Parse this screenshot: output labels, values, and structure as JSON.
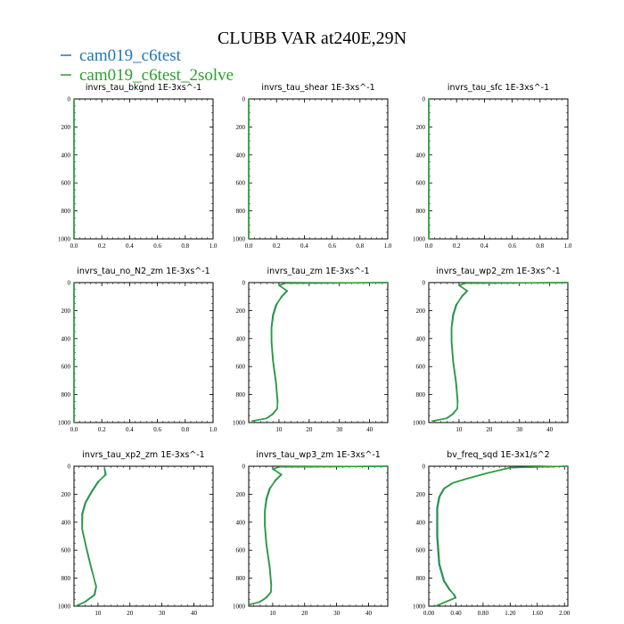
{
  "figure": {
    "title": "CLUBB VAR at240E,29N",
    "legend": [
      {
        "label": "cam019_c6test",
        "color": "#1f77b4"
      },
      {
        "label": "cam019_c6test_2solve",
        "color": "#2ca02c"
      }
    ]
  },
  "chart_data": [
    {
      "type": "line",
      "title": "invrs_tau_bkgnd   1E-3xs^-1",
      "xlim": [
        0,
        1
      ],
      "ylim": [
        1000,
        0
      ],
      "x_ticks": [
        "0.0",
        "0.2",
        "0.4",
        "0.6",
        "0.8",
        "1.0"
      ],
      "y_ticks": [
        "0",
        "200",
        "400",
        "600",
        "800",
        "1000"
      ],
      "series": [
        {
          "name": "cam019_c6test",
          "x": [
            0,
            0
          ],
          "y": [
            0,
            1000
          ]
        },
        {
          "name": "cam019_c6test_2solve",
          "x": [
            0,
            0
          ],
          "y": [
            0,
            1000
          ]
        }
      ]
    },
    {
      "type": "line",
      "title": "invrs_tau_shear   1E-3xs^-1",
      "xlim": [
        0,
        1
      ],
      "ylim": [
        1000,
        0
      ],
      "x_ticks": [
        "0.0",
        "0.2",
        "0.4",
        "0.6",
        "0.8",
        "1.0"
      ],
      "y_ticks": [
        "0",
        "200",
        "400",
        "600",
        "800",
        "1000"
      ],
      "series": [
        {
          "name": "cam019_c6test",
          "x": [
            0,
            0
          ],
          "y": [
            0,
            1000
          ]
        },
        {
          "name": "cam019_c6test_2solve",
          "x": [
            0,
            0
          ],
          "y": [
            0,
            1000
          ]
        }
      ]
    },
    {
      "type": "line",
      "title": "invrs_tau_sfc   1E-3xs^-1",
      "xlim": [
        0,
        1
      ],
      "ylim": [
        1000,
        0
      ],
      "x_ticks": [
        "0.0",
        "0.2",
        "0.4",
        "0.6",
        "0.8",
        "1.0"
      ],
      "y_ticks": [
        "0",
        "200",
        "400",
        "600",
        "800",
        "1000"
      ],
      "series": [
        {
          "name": "cam019_c6test",
          "x": [
            0,
            0
          ],
          "y": [
            0,
            1000
          ]
        },
        {
          "name": "cam019_c6test_2solve",
          "x": [
            0,
            0
          ],
          "y": [
            0,
            1000
          ]
        }
      ]
    },
    {
      "type": "line",
      "title": "invrs_tau_no_N2_zm   1E-3xs^-1",
      "xlim": [
        0,
        1
      ],
      "ylim": [
        1000,
        0
      ],
      "x_ticks": [
        "0.0",
        "0.2",
        "0.4",
        "0.6",
        "0.8",
        "1.0"
      ],
      "y_ticks": [
        "0",
        "200",
        "400",
        "600",
        "800",
        "1000"
      ],
      "series": [
        {
          "name": "cam019_c6test",
          "x": [
            0,
            0
          ],
          "y": [
            0,
            1000
          ]
        },
        {
          "name": "cam019_c6test_2solve",
          "x": [
            0,
            0
          ],
          "y": [
            0,
            1000
          ]
        }
      ]
    },
    {
      "type": "line",
      "title": "invrs_tau_zm   1E-3xs^-1",
      "xlim": [
        0,
        46
      ],
      "ylim": [
        1000,
        0
      ],
      "x_ticks": [
        "10",
        "20",
        "30",
        "40"
      ],
      "y_ticks": [
        "0",
        "200",
        "400",
        "600",
        "800",
        "1000"
      ],
      "series": [
        {
          "name": "cam019_c6test",
          "x": [
            46,
            12,
            10,
            12.8,
            11,
            9,
            8,
            7.5,
            7.5,
            8,
            9,
            9.5,
            9.5,
            8,
            6,
            1
          ],
          "y": [
            0,
            5,
            20,
            60,
            100,
            160,
            230,
            320,
            420,
            560,
            720,
            850,
            900,
            940,
            970,
            990
          ]
        },
        {
          "name": "cam019_c6test_2solve",
          "x": [
            46,
            12,
            10.2,
            12.6,
            10.8,
            9.2,
            8.2,
            7.6,
            7.6,
            8.1,
            9.1,
            9.6,
            9.4,
            7.8,
            5.8,
            1
          ],
          "y": [
            0,
            5,
            20,
            60,
            100,
            160,
            230,
            320,
            420,
            560,
            720,
            850,
            900,
            940,
            970,
            990
          ]
        }
      ]
    },
    {
      "type": "line",
      "title": "invrs_tau_wp2_zm   1E-3xs^-1",
      "xlim": [
        0,
        46
      ],
      "ylim": [
        1000,
        0
      ],
      "x_ticks": [
        "10",
        "20",
        "30",
        "40"
      ],
      "y_ticks": [
        "0",
        "200",
        "400",
        "600",
        "800",
        "1000"
      ],
      "series": [
        {
          "name": "cam019_c6test",
          "x": [
            46,
            12,
            10,
            12.8,
            11,
            9,
            8,
            7.5,
            7.5,
            8,
            9,
            9.5,
            9.5,
            8,
            6,
            1
          ],
          "y": [
            0,
            5,
            20,
            60,
            100,
            160,
            230,
            320,
            420,
            560,
            720,
            850,
            900,
            940,
            970,
            990
          ]
        },
        {
          "name": "cam019_c6test_2solve",
          "x": [
            46,
            12,
            10.2,
            12.6,
            10.8,
            9.2,
            8.2,
            7.6,
            7.6,
            8.1,
            9.1,
            9.6,
            9.4,
            7.8,
            5.8,
            1
          ],
          "y": [
            0,
            5,
            20,
            60,
            100,
            160,
            230,
            320,
            420,
            560,
            720,
            850,
            900,
            940,
            970,
            990
          ]
        }
      ]
    },
    {
      "type": "line",
      "title": "invrs_tau_xp2_zm   1E-3xs^-1",
      "xlim": [
        2.5,
        46
      ],
      "ylim": [
        1000,
        0
      ],
      "x_ticks": [
        "10",
        "20",
        "30",
        "40"
      ],
      "y_ticks": [
        "0",
        "200",
        "400",
        "600",
        "800",
        "1000"
      ],
      "series": [
        {
          "name": "cam019_c6test",
          "x": [
            12,
            12.5,
            10,
            8,
            6,
            5,
            5,
            6.5,
            8,
            9.5,
            9,
            6,
            3
          ],
          "y": [
            10,
            60,
            110,
            180,
            260,
            340,
            450,
            600,
            740,
            860,
            920,
            970,
            1000
          ]
        },
        {
          "name": "cam019_c6test_2solve",
          "x": [
            12,
            12.3,
            10.2,
            8.2,
            6.2,
            5.2,
            5.1,
            6.6,
            8.1,
            9.4,
            8.8,
            5.8,
            3
          ],
          "y": [
            10,
            60,
            110,
            180,
            260,
            340,
            450,
            600,
            740,
            860,
            920,
            970,
            1000
          ]
        }
      ]
    },
    {
      "type": "line",
      "title": "invrs_tau_wp3_zm   1E-3xs^-1",
      "xlim": [
        2.5,
        46
      ],
      "ylim": [
        1000,
        0
      ],
      "x_ticks": [
        "10",
        "20",
        "30",
        "40"
      ],
      "y_ticks": [
        "0",
        "200",
        "400",
        "600",
        "800",
        "1000"
      ],
      "series": [
        {
          "name": "cam019_c6test",
          "x": [
            46,
            12,
            10,
            12.8,
            11,
            9,
            8,
            7.5,
            7.5,
            8,
            9,
            9.5,
            9.5,
            8,
            6,
            2.5
          ],
          "y": [
            0,
            5,
            20,
            60,
            100,
            160,
            230,
            320,
            420,
            560,
            720,
            850,
            900,
            940,
            970,
            990
          ]
        },
        {
          "name": "cam019_c6test_2solve",
          "x": [
            46,
            12,
            10.2,
            12.6,
            10.8,
            9.2,
            8.2,
            7.6,
            7.6,
            8.1,
            9.1,
            9.6,
            9.4,
            7.8,
            5.8,
            2.5
          ],
          "y": [
            0,
            5,
            20,
            60,
            100,
            160,
            230,
            320,
            420,
            560,
            720,
            850,
            900,
            940,
            970,
            990
          ]
        }
      ]
    },
    {
      "type": "line",
      "title": "bv_freq_sqd   1E-3x1/s^2",
      "xlim": [
        0,
        2.05
      ],
      "ylim": [
        1000,
        0
      ],
      "x_ticks": [
        "0.00",
        "0.40",
        "0.80",
        "1.20",
        "1.60",
        "2.00"
      ],
      "y_ticks": [
        "0",
        "200",
        "400",
        "600",
        "800",
        "1000"
      ],
      "series": [
        {
          "name": "cam019_c6test",
          "x": [
            2.05,
            1.2,
            0.85,
            0.55,
            0.35,
            0.22,
            0.15,
            0.12,
            0.12,
            0.15,
            0.22,
            0.3,
            0.38,
            0.4,
            0.3,
            0.1
          ],
          "y": [
            0,
            10,
            50,
            90,
            120,
            160,
            220,
            300,
            500,
            700,
            820,
            880,
            920,
            940,
            960,
            1000
          ]
        },
        {
          "name": "cam019_c6test_2solve",
          "x": [
            2.05,
            1.2,
            0.86,
            0.56,
            0.36,
            0.23,
            0.16,
            0.13,
            0.13,
            0.16,
            0.23,
            0.31,
            0.37,
            0.39,
            0.29,
            0.1
          ],
          "y": [
            0,
            10,
            50,
            90,
            120,
            160,
            220,
            300,
            500,
            700,
            820,
            880,
            920,
            940,
            960,
            1000
          ]
        }
      ]
    }
  ]
}
